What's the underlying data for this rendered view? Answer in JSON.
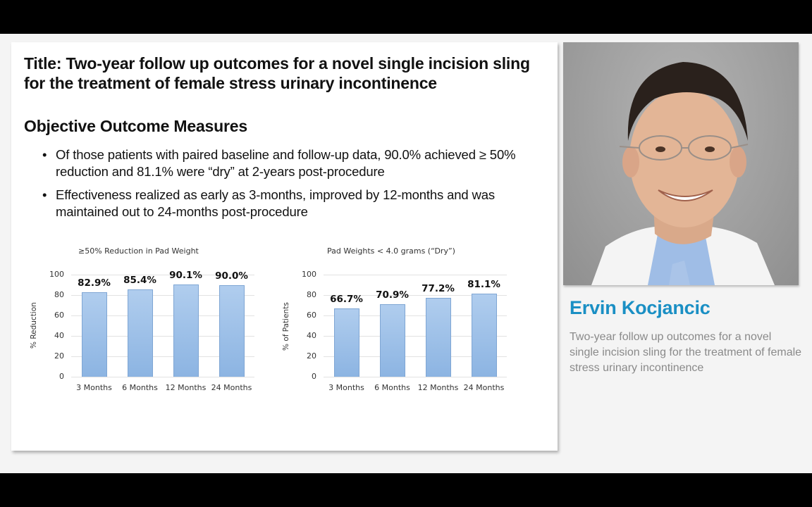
{
  "slide": {
    "title": "Title:  Two-year follow up outcomes for a novel single incision sling for the treatment of female stress urinary incontinence",
    "subtitle": "Objective Outcome Measures",
    "bullets": [
      "Of those patients with paired baseline and follow-up data, 90.0% achieved ≥ 50% reduction and 81.1% were “dry” at 2-years post-procedure",
      "Effectiveness realized as early as 3-months, improved by 12-months and was maintained out to 24-months post-procedure"
    ],
    "bullet_glyph": "•"
  },
  "chart_data": [
    {
      "type": "bar",
      "title": "≥50% Reduction in Pad Weight",
      "xlabel": "",
      "ylabel": "% Reduction",
      "categories": [
        "3 Months",
        "6 Months",
        "12 Months",
        "24 Months"
      ],
      "values": [
        82.9,
        85.4,
        90.1,
        90.0
      ],
      "data_labels": [
        "82.9%",
        "85.4%",
        "90.1%",
        "90.0%"
      ],
      "yticks": [
        "100",
        "80",
        "60",
        "40",
        "20",
        "0"
      ],
      "ylim": [
        0,
        100
      ],
      "grid": true,
      "bar_color": "#9dc0e8"
    },
    {
      "type": "bar",
      "title": "Pad Weights < 4.0 grams (“Dry”)",
      "xlabel": "",
      "ylabel": "% of Patients",
      "categories": [
        "3 Months",
        "6 Months",
        "12 Months",
        "24 Months"
      ],
      "values": [
        66.7,
        70.9,
        77.2,
        81.1
      ],
      "data_labels": [
        "66.7%",
        "70.9%",
        "77.2%",
        "81.1%"
      ],
      "yticks": [
        "100",
        "80",
        "60",
        "40",
        "20",
        "0"
      ],
      "ylim": [
        0,
        100
      ],
      "grid": true,
      "bar_color": "#9dc0e8"
    }
  ],
  "speaker": {
    "name": "Ervin Kocjancic",
    "description": "Two-year follow up outcomes for a novel single incision sling for the treatment of female stress urinary incontinence",
    "name_color": "#1a8fc4"
  }
}
